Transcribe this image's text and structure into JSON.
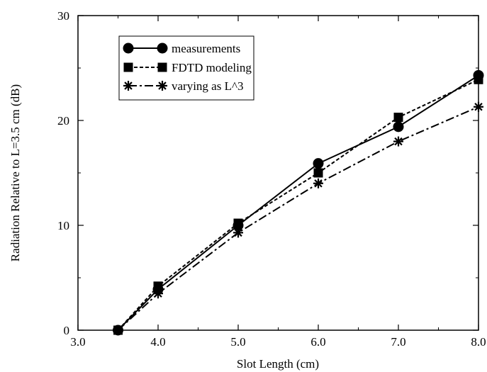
{
  "chart_data": {
    "type": "line",
    "xlabel": "Slot Length (cm)",
    "ylabel": "Radiation Relative to L=3.5 cm (dB)",
    "xlim": [
      3.0,
      8.0
    ],
    "ylim": [
      0,
      30
    ],
    "x_ticks": [
      3.0,
      4.0,
      5.0,
      6.0,
      7.0,
      8.0
    ],
    "x_tick_labels": [
      "3.0",
      "4.0",
      "5.0",
      "6.0",
      "7.0",
      "8.0"
    ],
    "y_ticks": [
      0,
      10,
      20,
      30
    ],
    "y_tick_labels": [
      "0",
      "10",
      "20",
      "30"
    ],
    "grid": false,
    "legend_position": "top-left",
    "series": [
      {
        "name": "measurements",
        "marker": "circle",
        "line_style": "solid",
        "color": "#000000",
        "x": [
          3.5,
          4.0,
          5.0,
          6.0,
          7.0,
          8.0
        ],
        "y": [
          0,
          3.9,
          10.0,
          15.9,
          19.4,
          24.3
        ]
      },
      {
        "name": "FDTD modeling",
        "marker": "square",
        "line_style": "dotted",
        "color": "#000000",
        "x": [
          3.5,
          4.0,
          5.0,
          6.0,
          7.0,
          8.0
        ],
        "y": [
          0,
          4.2,
          10.2,
          15.0,
          20.3,
          23.9
        ]
      },
      {
        "name": "varying as L^3",
        "marker": "asterisk",
        "line_style": "dashdot",
        "color": "#000000",
        "x": [
          3.5,
          4.0,
          5.0,
          6.0,
          7.0,
          8.0
        ],
        "y": [
          0,
          3.5,
          9.3,
          14.0,
          18.0,
          21.3
        ]
      }
    ]
  }
}
